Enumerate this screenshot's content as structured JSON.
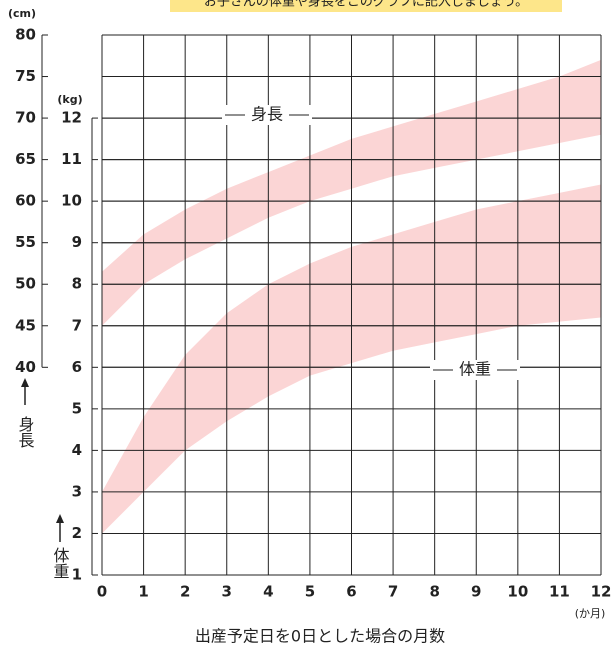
{
  "banner": "お子さんの体重や身長をこのグラフに記入しましょう。",
  "chart_data": {
    "type": "band",
    "x_label": "出産予定日を0日とした場合の月数",
    "x_unit": "(か月)",
    "y_unit": "(cm)",
    "y2_unit": "(kg)",
    "y_axis_label": "身長",
    "y2_axis_label": "体重",
    "x": [
      0,
      1,
      2,
      3,
      4,
      5,
      6,
      7,
      8,
      9,
      10,
      11,
      12
    ],
    "xlim": [
      0,
      12
    ],
    "xticks": [
      0,
      1,
      2,
      3,
      4,
      5,
      6,
      7,
      8,
      9,
      10,
      11,
      12
    ],
    "ylim": [
      15,
      80
    ],
    "yticks": [
      40,
      45,
      50,
      55,
      60,
      65,
      70,
      75,
      80
    ],
    "y2lim": [
      1,
      14
    ],
    "y2ticks": [
      1,
      2,
      3,
      4,
      5,
      6,
      7,
      8,
      9,
      10,
      11,
      12
    ],
    "grid": true,
    "series": [
      {
        "name": "身長",
        "color": "#fbd5d5",
        "lower": [
          45,
          50,
          53,
          55.5,
          58,
          60,
          61.5,
          63,
          64,
          65,
          66,
          67,
          68
        ],
        "upper": [
          51.5,
          56,
          59,
          61.5,
          63.5,
          65.5,
          67.5,
          69,
          70.5,
          72,
          73.5,
          75,
          77
        ]
      },
      {
        "name": "体重",
        "color": "#fbd5d5",
        "axis": "y2",
        "lower": [
          2.0,
          3.0,
          4.0,
          4.7,
          5.3,
          5.8,
          6.1,
          6.4,
          6.6,
          6.8,
          7.0,
          7.1,
          7.2
        ],
        "upper": [
          3.0,
          4.8,
          6.3,
          7.3,
          8.0,
          8.5,
          8.9,
          9.2,
          9.5,
          9.8,
          10.0,
          10.2,
          10.4
        ]
      }
    ]
  }
}
